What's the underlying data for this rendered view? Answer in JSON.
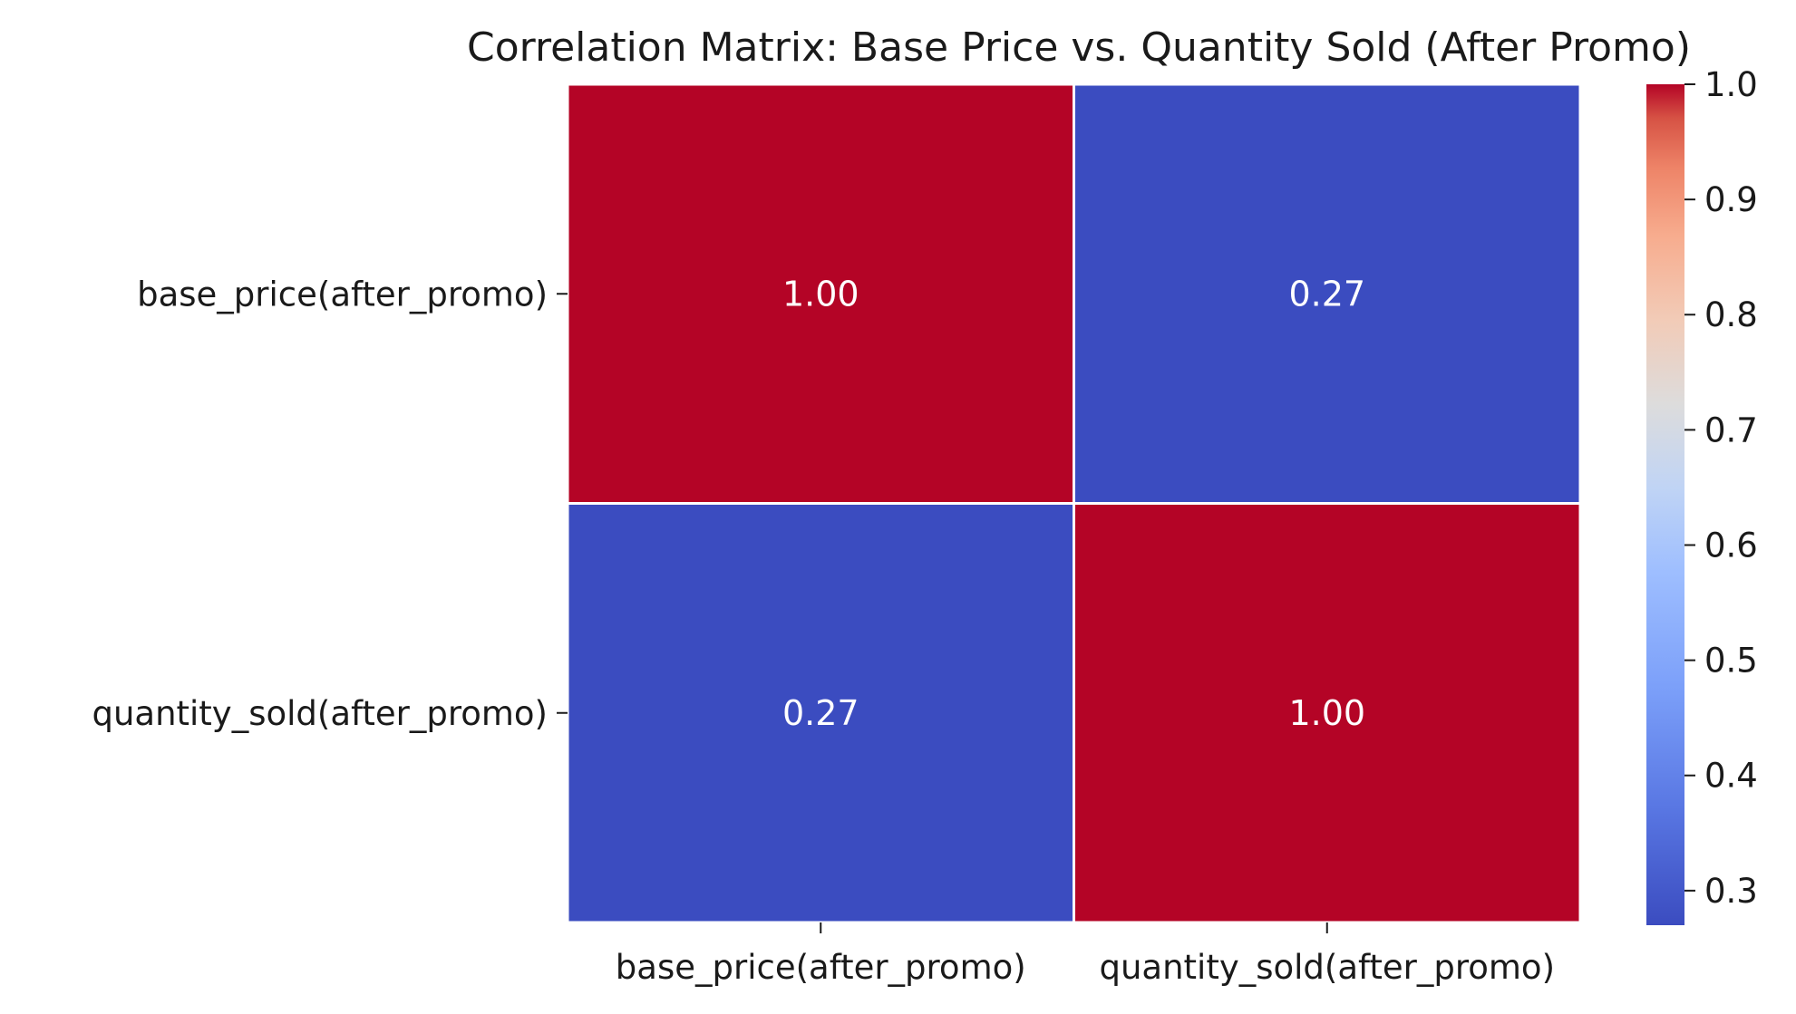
{
  "chart_data": {
    "type": "heatmap",
    "title": "Correlation Matrix: Base Price vs. Quantity Sold (After Promo)",
    "x_categories": [
      "base_price(after_promo)",
      "quantity_sold(after_promo)"
    ],
    "y_categories": [
      "base_price(after_promo)",
      "quantity_sold(after_promo)"
    ],
    "values": [
      [
        1.0,
        0.27
      ],
      [
        0.27,
        1.0
      ]
    ],
    "annotations": [
      [
        "1.00",
        "0.27"
      ],
      [
        "0.27",
        "1.00"
      ]
    ],
    "colormap": "coolwarm",
    "colorbar": {
      "range": [
        0.27,
        1.0
      ],
      "ticks": [
        0.3,
        0.4,
        0.5,
        0.6,
        0.7,
        0.8,
        0.9,
        1.0
      ],
      "tick_labels": [
        "0.3",
        "0.4",
        "0.5",
        "0.6",
        "0.7",
        "0.8",
        "0.9",
        "1.0"
      ]
    },
    "colors": {
      "high": "#b40426",
      "low": "#3b4cc0",
      "cell_border": "#ffffff",
      "annotation_text": "#ffffff"
    }
  }
}
